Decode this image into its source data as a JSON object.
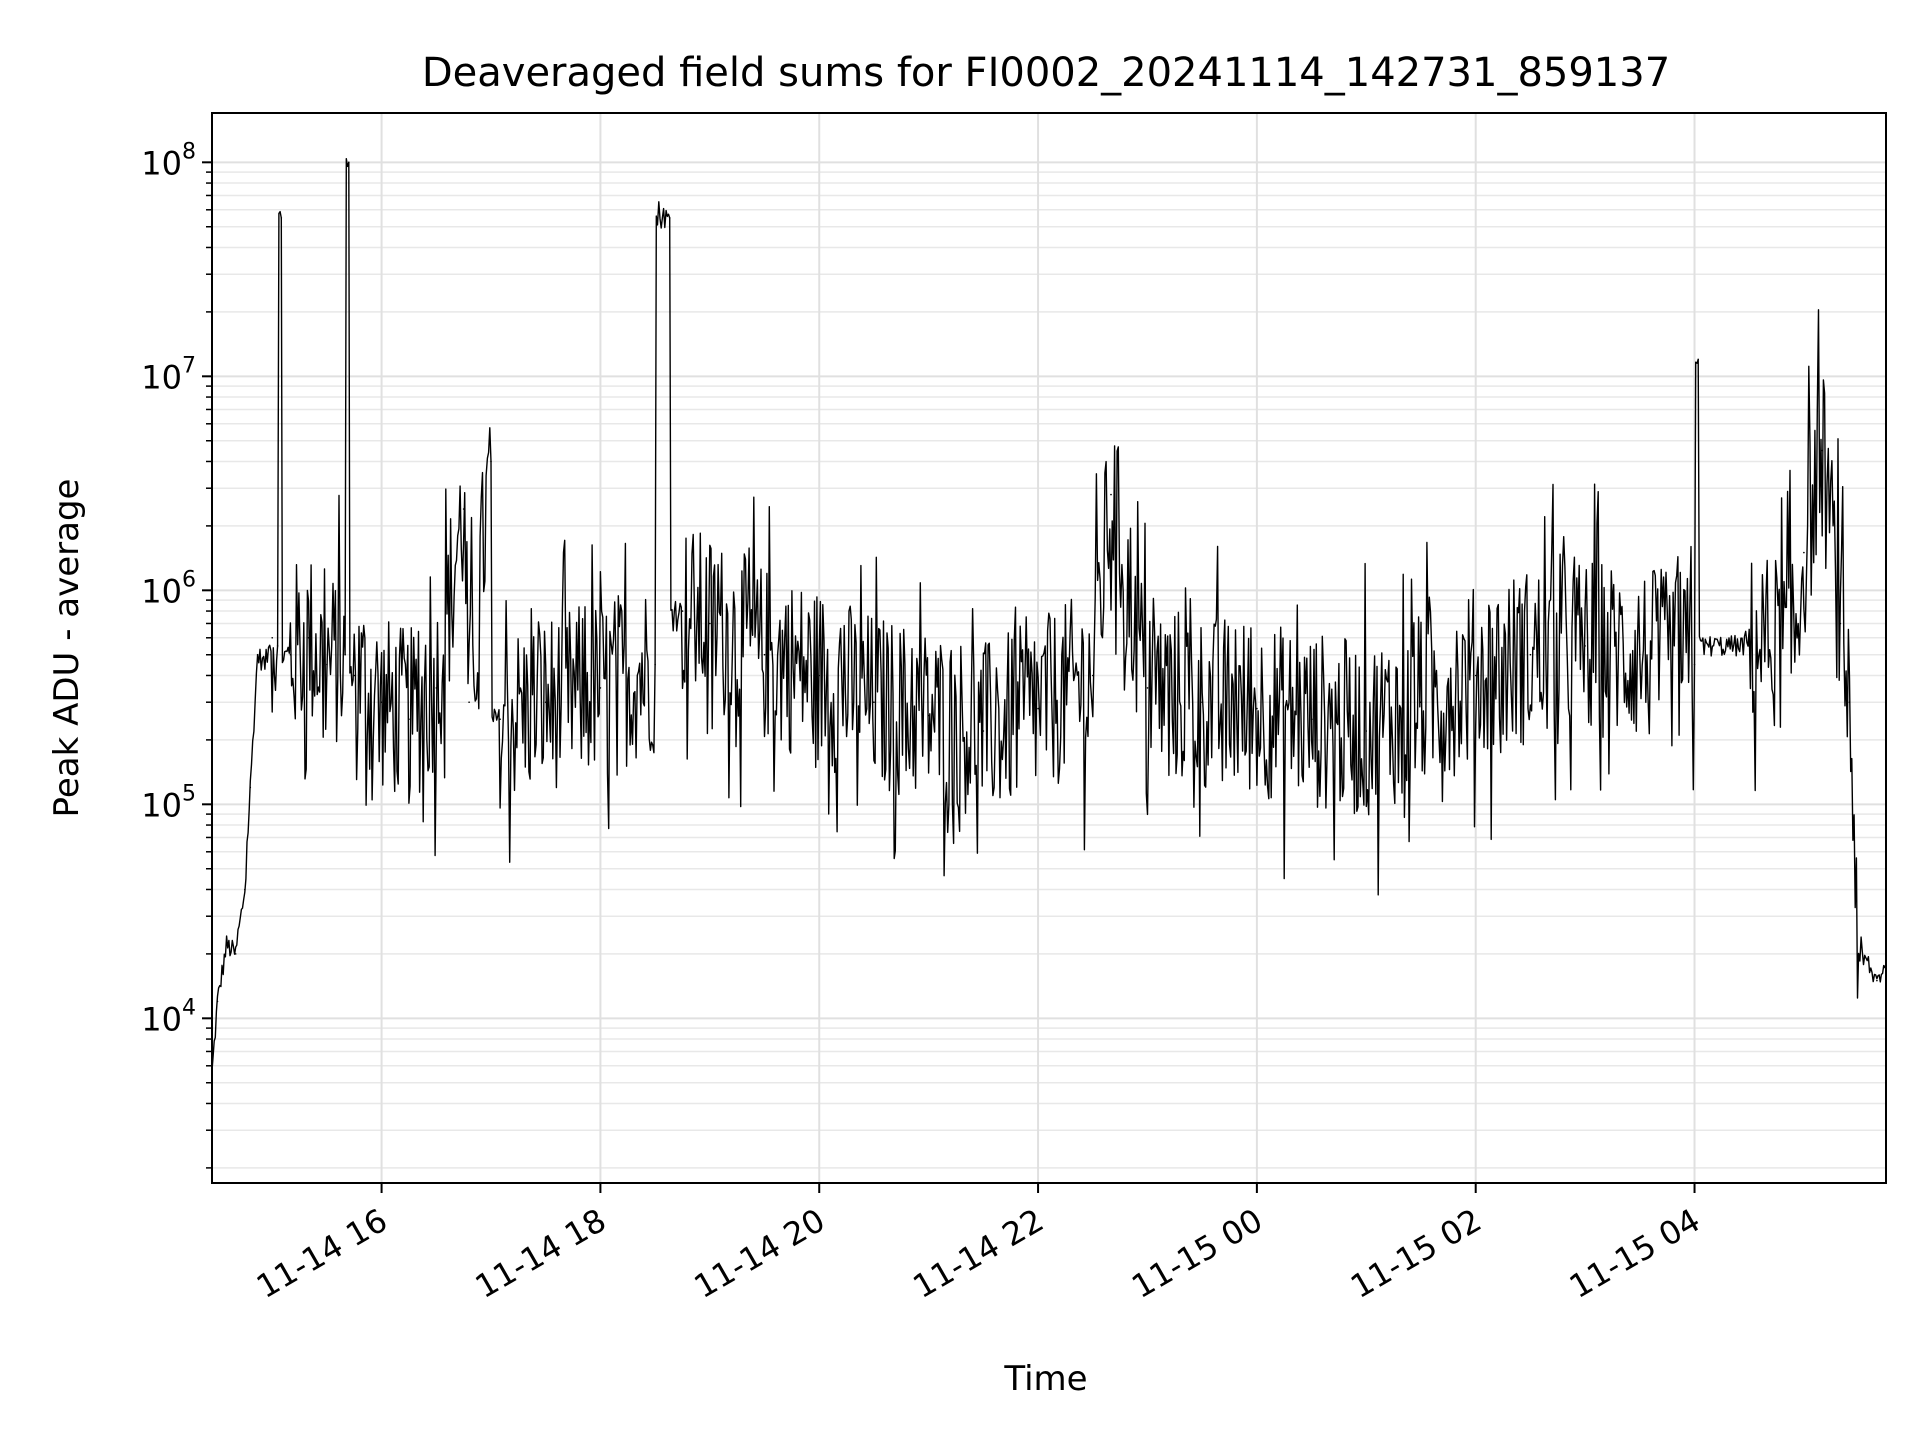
{
  "chart_data": {
    "type": "line",
    "title": "Deaveraged field sums for FI0002_20241114_142731_859137",
    "xlabel": "Time",
    "ylabel": "Peak ADU - average",
    "yscale": "log",
    "ylim": [
      1700,
      170000000
    ],
    "xlim": [
      "2024-11-14 14:27",
      "2024-11-15 05:45"
    ],
    "grid": true,
    "legend": "none",
    "line_color": "#000000",
    "y_ticks": [
      {
        "base": "10",
        "exp": "4",
        "value": 10000
      },
      {
        "base": "10",
        "exp": "5",
        "value": 100000
      },
      {
        "base": "10",
        "exp": "6",
        "value": 1000000
      },
      {
        "base": "10",
        "exp": "7",
        "value": 10000000
      },
      {
        "base": "10",
        "exp": "8",
        "value": 100000000
      }
    ],
    "x_ticks": [
      {
        "label": "11-14 16",
        "value": "2024-11-14 16:00"
      },
      {
        "label": "11-14 18",
        "value": "2024-11-14 18:00"
      },
      {
        "label": "11-14 20",
        "value": "2024-11-14 20:00"
      },
      {
        "label": "11-14 22",
        "value": "2024-11-14 22:00"
      },
      {
        "label": "11-15 00",
        "value": "2024-11-15 00:00"
      },
      {
        "label": "11-15 02",
        "value": "2024-11-15 02:00"
      },
      {
        "label": "11-15 04",
        "value": "2024-11-15 04:00"
      }
    ],
    "series": [
      {
        "x": [
          "2024-11-14 14:27",
          "2024-11-14 14:30",
          "2024-11-14 14:35",
          "2024-11-14 14:40",
          "2024-11-14 14:45",
          "2024-11-14 14:48",
          "2024-11-14 14:52",
          "2024-11-14 14:56",
          "2024-11-14 15:00",
          "2024-11-14 15:03",
          "2024-11-14 15:05",
          "2024-11-14 15:10",
          "2024-11-14 15:20",
          "2024-11-14 15:30",
          "2024-11-14 15:40",
          "2024-11-14 15:42",
          "2024-11-14 15:45",
          "2024-11-14 16:00",
          "2024-11-14 16:15",
          "2024-11-14 16:30",
          "2024-11-14 16:45",
          "2024-11-14 16:48",
          "2024-11-14 17:00",
          "2024-11-14 17:05",
          "2024-11-14 17:30",
          "2024-11-14 18:00",
          "2024-11-14 18:30",
          "2024-11-14 18:38",
          "2024-11-14 18:45",
          "2024-11-14 19:00",
          "2024-11-14 19:30",
          "2024-11-14 20:00",
          "2024-11-14 20:30",
          "2024-11-14 21:00",
          "2024-11-14 21:30",
          "2024-11-14 22:00",
          "2024-11-14 22:30",
          "2024-11-14 22:40",
          "2024-11-14 23:00",
          "2024-11-14 23:30",
          "2024-11-15 00:00",
          "2024-11-15 00:30",
          "2024-11-15 01:00",
          "2024-11-15 01:30",
          "2024-11-15 02:00",
          "2024-11-15 02:30",
          "2024-11-15 03:00",
          "2024-11-15 03:30",
          "2024-11-15 04:00",
          "2024-11-15 04:02",
          "2024-11-15 04:30",
          "2024-11-15 04:55",
          "2024-11-15 05:00",
          "2024-11-15 05:10",
          "2024-11-15 05:20",
          "2024-11-15 05:25",
          "2024-11-15 05:30",
          "2024-11-15 05:40",
          "2024-11-15 05:45"
        ],
        "y": [
          5500,
          12000,
          22000,
          20000,
          40000,
          120000,
          500000,
          450000,
          600000,
          550000,
          55000000,
          500000,
          600000,
          450000,
          500000,
          100000000,
          400000,
          300000,
          250000,
          350000,
          2400000,
          300000,
          4000000,
          250000,
          300000,
          350000,
          450000,
          55000000,
          800000,
          700000,
          500000,
          400000,
          300000,
          260000,
          220000,
          280000,
          400000,
          2800000,
          350000,
          300000,
          280000,
          250000,
          220000,
          300000,
          400000,
          500000,
          550000,
          500000,
          450000,
          12000000,
          550000,
          600000,
          1500000,
          4500000,
          700000,
          300000,
          20000,
          15000,
          18000
        ]
      }
    ]
  }
}
